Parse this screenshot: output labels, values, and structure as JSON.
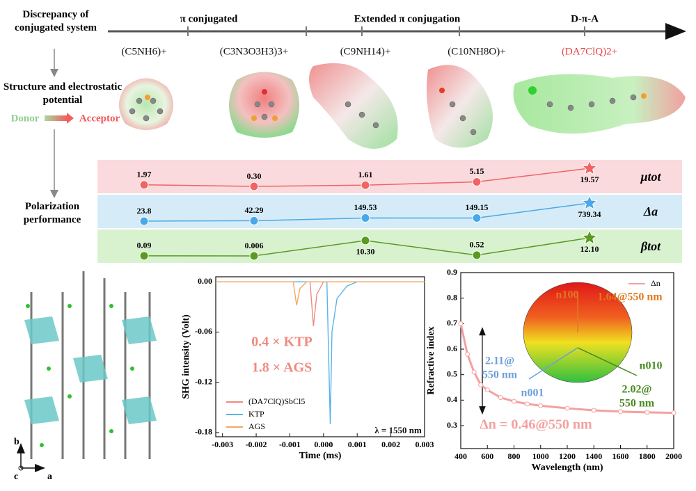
{
  "scheme": {
    "axis_title": "Discrepancy of conjugated system",
    "stages": [
      "π conjugated",
      "Extended π conjugation",
      "D-π-A"
    ],
    "structure_label": "Structure and electrostatic potential",
    "donor": "Donor",
    "acceptor": "Acceptor",
    "performance_label": "Polarization performance"
  },
  "crystal_axes": [
    "b",
    "c",
    "a"
  ],
  "chart_data": [
    {
      "type": "dotrow",
      "categories": [
        "(C5NH6)+",
        "(C3N3O3H3)3+",
        "(C9NH14)+",
        "(C10NH8O)+",
        "(DA7ClQ)2+"
      ],
      "series": [
        {
          "name": "μtot",
          "color": "#f06464",
          "values": [
            1.97,
            0.3,
            1.61,
            5.15,
            19.57
          ],
          "value_labels": [
            "1.97",
            "0.30",
            "1.61",
            "5.15",
            "19.57"
          ]
        },
        {
          "name": "Δa",
          "color": "#4aa8e8",
          "values": [
            23.8,
            42.29,
            149.53,
            149.15,
            739.34
          ]
        },
        {
          "name": "βtot",
          "color": "#5a9a20",
          "values": [
            0.09,
            0.006,
            10.3,
            0.52,
            12.1
          ],
          "value_labels": [
            "0.09",
            "0.006",
            "10.30",
            "0.52",
            "12.10"
          ]
        }
      ]
    },
    {
      "type": "line",
      "xlabel": "Time (ms)",
      "ylabel": "SHG intensity (Volt)",
      "xlim": [
        -0.0032,
        0.003
      ],
      "ylim": [
        -0.185,
        0.006
      ],
      "xticks": [
        -0.003,
        -0.002,
        -0.001,
        {
          "value": 0,
          "label": "0.000"
        },
        0.001,
        0.002,
        0.003
      ],
      "yticks": [
        {
          "value": 0,
          "label": "0.00"
        },
        -0.06,
        -0.12,
        -0.18
      ],
      "legend": "lower left",
      "annotations": [
        "0.4 × KTP",
        "1.8 × AGS",
        "λ = 1550 nm"
      ],
      "series": [
        {
          "name": "(DA7ClQ)SbCl5",
          "color": "#f08a80",
          "x": [
            -0.0032,
            -0.0004,
            -0.0003,
            -0.0002,
            0,
            0.003
          ],
          "values": [
            0,
            0,
            -0.053,
            -0.015,
            0,
            0
          ]
        },
        {
          "name": "KTP",
          "color": "#5ab4e8",
          "x": [
            -0.0032,
            0.0001,
            0.0002,
            0.00025,
            0.0004,
            0.0007,
            0.001,
            0.003
          ],
          "values": [
            0,
            0,
            -0.17,
            -0.06,
            -0.02,
            -0.005,
            0,
            0
          ]
        },
        {
          "name": "AGS",
          "color": "#f5a860",
          "x": [
            -0.0032,
            -0.0009,
            -0.0008,
            -0.0007,
            -0.0005,
            0.003
          ],
          "values": [
            0,
            0,
            -0.028,
            -0.008,
            0,
            0
          ]
        }
      ]
    },
    {
      "type": "line",
      "xlabel": "Wavelength (nm)",
      "ylabel": "Refractive index",
      "xlim": [
        400,
        2000
      ],
      "ylim": [
        0.21,
        0.9
      ],
      "xticks": [
        400,
        600,
        800,
        1000,
        1200,
        1400,
        1600,
        1800,
        2000
      ],
      "yticks": [
        0.3,
        0.4,
        0.5,
        0.6,
        0.7,
        0.8,
        0.9
      ],
      "legend": "upper right",
      "markers": true,
      "annotations": [
        "Δn = 0.46@550 nm",
        "n100",
        "1.64@550 nm",
        "2.11@",
        "550 nm",
        "n001",
        "n010",
        "2.02@",
        "550 nm"
      ],
      "series": [
        {
          "name": "Δn",
          "color": "#f4a0a0",
          "x": [
            400,
            450,
            500,
            550,
            600,
            700,
            800,
            900,
            1000,
            1200,
            1400,
            1600,
            1800,
            2000
          ],
          "values": [
            0.7,
            0.58,
            0.51,
            0.46,
            0.44,
            0.41,
            0.395,
            0.385,
            0.378,
            0.368,
            0.36,
            0.355,
            0.352,
            0.35
          ]
        }
      ]
    }
  ]
}
